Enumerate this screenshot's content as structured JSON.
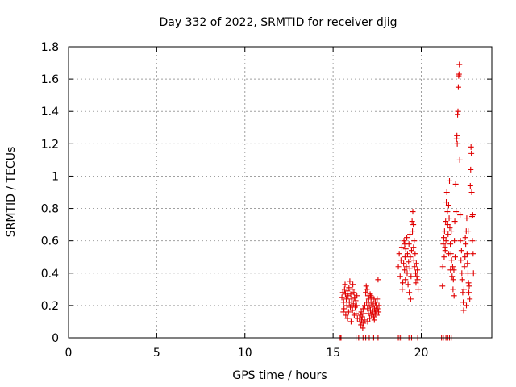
{
  "chart_data": {
    "type": "scatter",
    "title": "Day 332 of 2022, SRMTID for receiver djig",
    "xlabel": "GPS time / hours",
    "ylabel": "SRMTID / TECUs",
    "xlim": [
      0,
      24
    ],
    "ylim": [
      0,
      1.8
    ],
    "xticks": [
      0,
      5,
      10,
      15,
      20
    ],
    "yticks": [
      0,
      0.2,
      0.4,
      0.6,
      0.8,
      1,
      1.2,
      1.4,
      1.6,
      1.8
    ],
    "xtick_labels": [
      "0",
      "5",
      "10",
      "15",
      "20"
    ],
    "ytick_labels": [
      "0",
      "0.2",
      "0.4",
      "0.6",
      "0.8",
      "1",
      "1.2",
      "1.4",
      "1.6",
      "1.8"
    ],
    "grid": true,
    "marker": "+",
    "color": "#e00000",
    "series": [
      {
        "name": "SRMTID",
        "points": [
          [
            15.4,
            0.0
          ],
          [
            15.45,
            0.0
          ],
          [
            16.3,
            0.0
          ],
          [
            16.45,
            0.0
          ],
          [
            16.7,
            0.0
          ],
          [
            16.85,
            0.0
          ],
          [
            17.05,
            0.0
          ],
          [
            17.3,
            0.0
          ],
          [
            17.55,
            0.0
          ],
          [
            18.7,
            0.0
          ],
          [
            18.8,
            0.0
          ],
          [
            18.9,
            0.0
          ],
          [
            19.3,
            0.0
          ],
          [
            19.45,
            0.0
          ],
          [
            19.8,
            0.0
          ],
          [
            21.15,
            0.0
          ],
          [
            21.25,
            0.0
          ],
          [
            21.4,
            0.0
          ],
          [
            21.5,
            0.0
          ],
          [
            21.6,
            0.0
          ],
          [
            21.7,
            0.0
          ],
          [
            15.5,
            0.25
          ],
          [
            15.55,
            0.28
          ],
          [
            15.6,
            0.22
          ],
          [
            15.62,
            0.18
          ],
          [
            15.65,
            0.3
          ],
          [
            15.7,
            0.27
          ],
          [
            15.72,
            0.14
          ],
          [
            15.75,
            0.24
          ],
          [
            15.78,
            0.2
          ],
          [
            15.8,
            0.29
          ],
          [
            15.82,
            0.12
          ],
          [
            15.85,
            0.26
          ],
          [
            15.88,
            0.16
          ],
          [
            15.9,
            0.31
          ],
          [
            15.92,
            0.22
          ],
          [
            15.95,
            0.35
          ],
          [
            15.98,
            0.19
          ],
          [
            16.0,
            0.27
          ],
          [
            16.02,
            0.1
          ],
          [
            16.05,
            0.24
          ],
          [
            16.08,
            0.3
          ],
          [
            16.1,
            0.17
          ],
          [
            16.12,
            0.33
          ],
          [
            16.15,
            0.21
          ],
          [
            16.18,
            0.28
          ],
          [
            16.2,
            0.14
          ],
          [
            16.22,
            0.25
          ],
          [
            16.25,
            0.19
          ],
          [
            16.28,
            0.23
          ],
          [
            16.3,
            0.15
          ],
          [
            16.33,
            0.2
          ],
          [
            16.35,
            0.26
          ],
          [
            16.38,
            0.12
          ],
          [
            15.68,
            0.33
          ],
          [
            15.58,
            0.16
          ],
          [
            16.06,
            0.2
          ],
          [
            16.5,
            0.12
          ],
          [
            16.52,
            0.1
          ],
          [
            16.55,
            0.14
          ],
          [
            16.58,
            0.08
          ],
          [
            16.6,
            0.16
          ],
          [
            16.62,
            0.11
          ],
          [
            16.65,
            0.13
          ],
          [
            16.68,
            0.06
          ],
          [
            16.7,
            0.18
          ],
          [
            16.72,
            0.09
          ],
          [
            16.75,
            0.15
          ],
          [
            16.78,
            0.11
          ],
          [
            16.8,
            0.2
          ],
          [
            16.85,
            0.28
          ],
          [
            16.88,
            0.32
          ],
          [
            16.9,
            0.22
          ],
          [
            16.92,
            0.3
          ],
          [
            16.95,
            0.18
          ],
          [
            16.98,
            0.26
          ],
          [
            17.0,
            0.15
          ],
          [
            17.02,
            0.24
          ],
          [
            17.05,
            0.2
          ],
          [
            17.08,
            0.12
          ],
          [
            17.1,
            0.27
          ],
          [
            17.12,
            0.17
          ],
          [
            17.15,
            0.22
          ],
          [
            17.18,
            0.14
          ],
          [
            17.2,
            0.25
          ],
          [
            17.22,
            0.19
          ],
          [
            17.25,
            0.16
          ],
          [
            17.28,
            0.21
          ],
          [
            17.3,
            0.13
          ],
          [
            17.32,
            0.24
          ],
          [
            17.35,
            0.18
          ],
          [
            17.38,
            0.15
          ],
          [
            17.4,
            0.22
          ],
          [
            17.42,
            0.17
          ],
          [
            17.45,
            0.2
          ],
          [
            17.48,
            0.14
          ],
          [
            17.5,
            0.24
          ],
          [
            17.52,
            0.18
          ],
          [
            17.55,
            0.36
          ],
          [
            17.58,
            0.16
          ],
          [
            17.6,
            0.2
          ],
          [
            16.96,
            0.1
          ],
          [
            17.14,
            0.26
          ],
          [
            17.34,
            0.11
          ],
          [
            18.7,
            0.44
          ],
          [
            18.75,
            0.52
          ],
          [
            18.8,
            0.38
          ],
          [
            18.85,
            0.48
          ],
          [
            18.9,
            0.56
          ],
          [
            18.95,
            0.34
          ],
          [
            19.0,
            0.46
          ],
          [
            19.02,
            0.6
          ],
          [
            19.05,
            0.42
          ],
          [
            19.08,
            0.5
          ],
          [
            19.1,
            0.36
          ],
          [
            19.12,
            0.55
          ],
          [
            19.15,
            0.44
          ],
          [
            19.18,
            0.62
          ],
          [
            19.2,
            0.4
          ],
          [
            19.22,
            0.52
          ],
          [
            19.25,
            0.33
          ],
          [
            19.28,
            0.47
          ],
          [
            19.3,
            0.58
          ],
          [
            19.32,
            0.28
          ],
          [
            19.35,
            0.43
          ],
          [
            19.38,
            0.5
          ],
          [
            19.4,
            0.24
          ],
          [
            19.42,
            0.38
          ],
          [
            19.45,
            0.54
          ],
          [
            19.48,
            0.72
          ],
          [
            19.5,
            0.66
          ],
          [
            19.52,
            0.78
          ],
          [
            19.55,
            0.7
          ],
          [
            19.58,
            0.48
          ],
          [
            19.6,
            0.6
          ],
          [
            19.62,
            0.44
          ],
          [
            19.65,
            0.52
          ],
          [
            19.68,
            0.4
          ],
          [
            19.7,
            0.34
          ],
          [
            19.72,
            0.46
          ],
          [
            19.75,
            0.38
          ],
          [
            19.78,
            0.42
          ],
          [
            19.8,
            0.36
          ],
          [
            19.82,
            0.3
          ],
          [
            18.92,
            0.3
          ],
          [
            19.06,
            0.58
          ],
          [
            19.36,
            0.64
          ],
          [
            19.56,
            0.56
          ],
          [
            21.2,
            0.32
          ],
          [
            21.22,
            0.44
          ],
          [
            21.25,
            0.58
          ],
          [
            21.28,
            0.62
          ],
          [
            21.3,
            0.5
          ],
          [
            21.32,
            0.66
          ],
          [
            21.35,
            0.56
          ],
          [
            21.38,
            0.72
          ],
          [
            21.4,
            0.6
          ],
          [
            21.42,
            0.84
          ],
          [
            21.45,
            0.9
          ],
          [
            21.48,
            0.78
          ],
          [
            21.5,
            0.7
          ],
          [
            21.52,
            0.64
          ],
          [
            21.55,
            0.82
          ],
          [
            21.58,
            0.74
          ],
          [
            21.6,
            0.97
          ],
          [
            21.62,
            0.68
          ],
          [
            21.65,
            0.58
          ],
          [
            21.68,
            0.52
          ],
          [
            21.7,
            0.66
          ],
          [
            21.72,
            0.48
          ],
          [
            21.75,
            0.38
          ],
          [
            21.78,
            0.44
          ],
          [
            21.8,
            0.3
          ],
          [
            21.82,
            0.36
          ],
          [
            21.85,
            0.42
          ],
          [
            21.88,
            0.6
          ],
          [
            21.9,
            0.72
          ],
          [
            21.92,
            0.5
          ],
          [
            21.95,
            0.95
          ],
          [
            21.97,
            0.78
          ],
          [
            22.0,
            1.23
          ],
          [
            22.02,
            1.25
          ],
          [
            22.04,
            1.2
          ],
          [
            22.06,
            1.38
          ],
          [
            22.08,
            1.4
          ],
          [
            22.1,
            1.55
          ],
          [
            22.12,
            1.62
          ],
          [
            22.14,
            1.63
          ],
          [
            22.16,
            1.69
          ],
          [
            22.18,
            1.1
          ],
          [
            22.2,
            0.76
          ],
          [
            22.22,
            0.6
          ],
          [
            22.25,
            0.48
          ],
          [
            22.28,
            0.54
          ],
          [
            22.3,
            0.4
          ],
          [
            22.32,
            0.36
          ],
          [
            22.35,
            0.28
          ],
          [
            22.38,
            0.22
          ],
          [
            22.4,
            0.17
          ],
          [
            22.42,
            0.3
          ],
          [
            22.45,
            0.44
          ],
          [
            22.48,
            0.5
          ],
          [
            22.5,
            0.62
          ],
          [
            22.52,
            0.58
          ],
          [
            22.55,
            0.66
          ],
          [
            22.58,
            0.74
          ],
          [
            22.6,
            0.52
          ],
          [
            22.62,
            0.46
          ],
          [
            22.65,
            0.4
          ],
          [
            22.68,
            0.34
          ],
          [
            22.7,
            0.28
          ],
          [
            22.72,
            0.32
          ],
          [
            22.75,
            0.24
          ],
          [
            22.78,
            0.94
          ],
          [
            22.8,
            1.04
          ],
          [
            22.82,
            1.18
          ],
          [
            22.84,
            1.14
          ],
          [
            22.86,
            0.9
          ],
          [
            22.88,
            0.75
          ],
          [
            22.9,
            0.6
          ],
          [
            22.92,
            0.76
          ],
          [
            22.94,
            0.52
          ],
          [
            22.96,
            0.4
          ],
          [
            21.56,
            0.52
          ],
          [
            21.66,
            0.42
          ],
          [
            21.86,
            0.26
          ],
          [
            22.56,
            0.2
          ],
          [
            22.66,
            0.66
          ],
          [
            21.36,
            0.54
          ]
        ]
      }
    ]
  }
}
